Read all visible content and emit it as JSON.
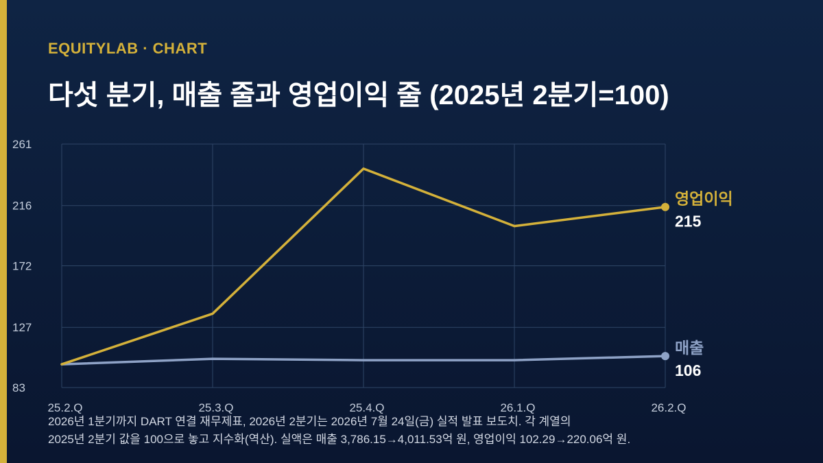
{
  "brand": "EQUITYLAB · CHART",
  "title": "다섯 분기, 매출 줄과 영업이익 줄 (2025년 2분기=100)",
  "footnote": {
    "line1": "2026년 1분기까지 DART 연결 재무제표, 2026년 2분기는 2026년 7월 24일(금) 실적 발표 보도치. 각 계열의",
    "line2": "2025년 2분기 값을 100으로 놓고 지수화(역산). 실액은 매출 3,786.15→4,011.53억 원, 영업이익 102.29→220.06억 원."
  },
  "colors": {
    "background": "#0c1c38",
    "accent": "#d4b13a",
    "operating_profit": "#d4b13a",
    "revenue": "#8ea2c6",
    "grid": "#2e4566"
  },
  "chart_data": {
    "type": "line",
    "categories": [
      "25.2.Q",
      "25.3.Q",
      "25.4.Q",
      "26.1.Q",
      "26.2.Q"
    ],
    "yticks": [
      83,
      127,
      172,
      216,
      261
    ],
    "ylim": [
      83,
      261
    ],
    "grid": true,
    "legend": "end-labels",
    "series": [
      {
        "name": "영업이익",
        "values": [
          100,
          137,
          243,
          201,
          215
        ],
        "end_label": "215",
        "color": "#d4b13a"
      },
      {
        "name": "매출",
        "values": [
          100,
          104,
          103,
          103,
          106
        ],
        "end_label": "106",
        "color": "#8ea2c6"
      }
    ]
  }
}
